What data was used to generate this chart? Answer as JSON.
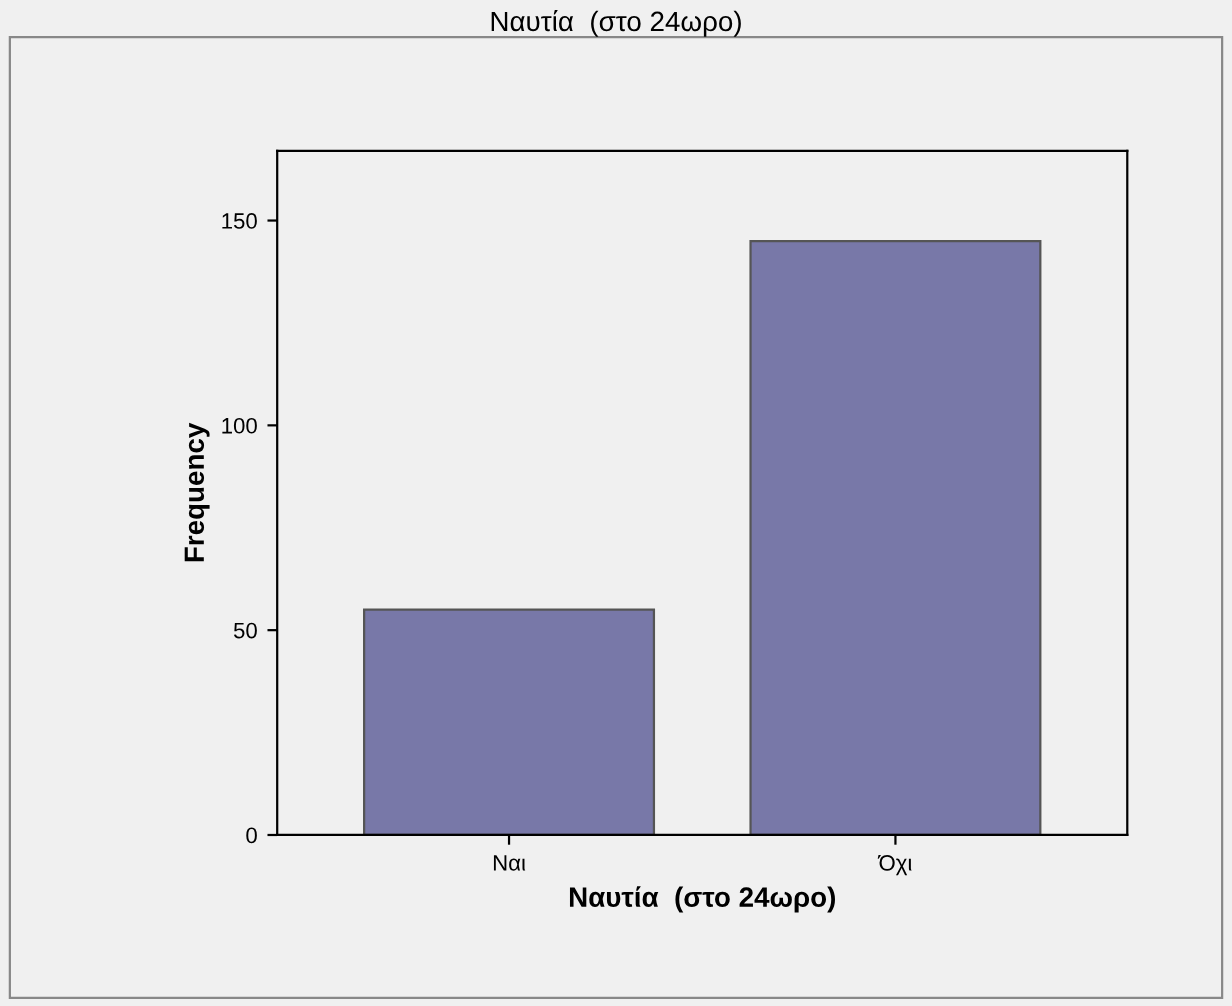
{
  "chart_data": {
    "type": "bar",
    "title": "Ναυτία  (στο 24ωρο)",
    "xlabel": "Ναυτία  (στο 24ωρο)",
    "ylabel": "Frequency",
    "categories": [
      "Ναι",
      "Όχι"
    ],
    "values": [
      55,
      145
    ],
    "color": "#7878a8",
    "ylim": [
      0,
      167
    ],
    "yticks": [
      0,
      50,
      100,
      150
    ],
    "grid": false,
    "legend": false
  }
}
